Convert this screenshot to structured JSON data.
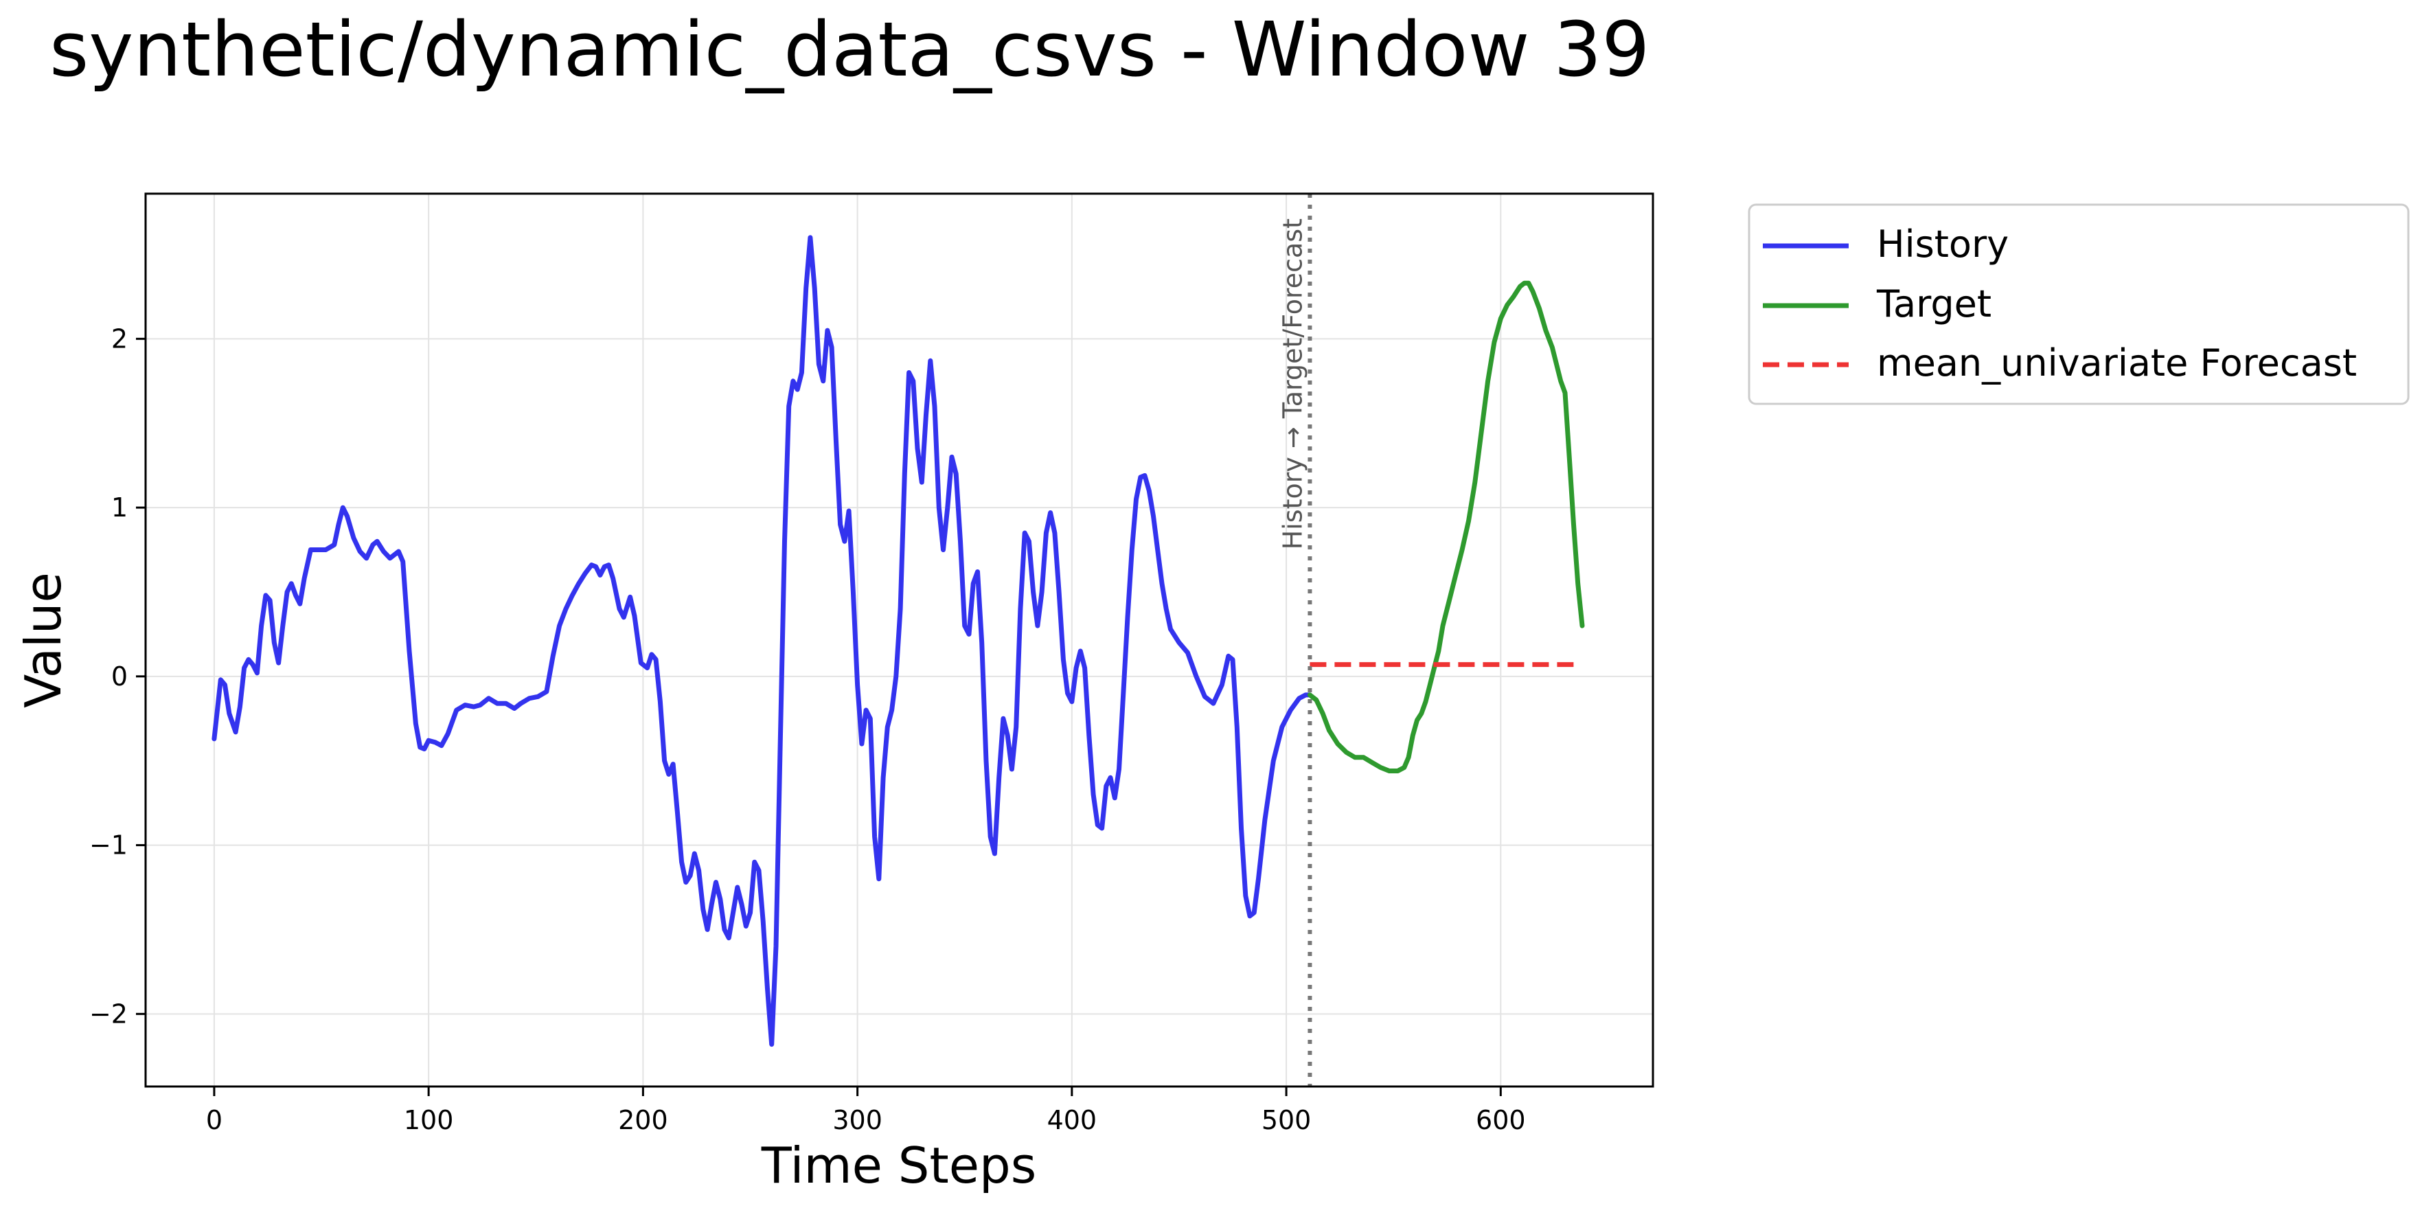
{
  "chart_data": {
    "type": "line",
    "title": "synthetic/dynamic_data_csvs - Window 39",
    "xlabel": "Time Steps",
    "ylabel": "Value",
    "xlim": [
      -32,
      671
    ],
    "ylim": [
      -2.43,
      2.86
    ],
    "xticks": [
      0,
      100,
      200,
      300,
      400,
      500,
      600
    ],
    "xtick_labels": [
      "0",
      "100",
      "200",
      "300",
      "400",
      "500",
      "600"
    ],
    "yticks": [
      -2,
      -1,
      0,
      1,
      2
    ],
    "ytick_labels": [
      "−2",
      "−1",
      "0",
      "1",
      "2"
    ],
    "grid": true,
    "legend_position": "outside-top-right",
    "annotation": {
      "text": "History → Target/Forecast",
      "x": 511
    },
    "series": [
      {
        "name": "History",
        "color": "#3333ee",
        "style": "solid",
        "points": [
          [
            0,
            -0.37
          ],
          [
            3,
            -0.02
          ],
          [
            5,
            -0.05
          ],
          [
            7,
            -0.22
          ],
          [
            10,
            -0.33
          ],
          [
            12,
            -0.18
          ],
          [
            14,
            0.05
          ],
          [
            16,
            0.1
          ],
          [
            18,
            0.07
          ],
          [
            20,
            0.02
          ],
          [
            22,
            0.3
          ],
          [
            24,
            0.48
          ],
          [
            26,
            0.45
          ],
          [
            28,
            0.2
          ],
          [
            30,
            0.08
          ],
          [
            32,
            0.3
          ],
          [
            34,
            0.5
          ],
          [
            36,
            0.55
          ],
          [
            38,
            0.48
          ],
          [
            40,
            0.43
          ],
          [
            42,
            0.58
          ],
          [
            45,
            0.75
          ],
          [
            48,
            0.75
          ],
          [
            52,
            0.75
          ],
          [
            56,
            0.78
          ],
          [
            58,
            0.9
          ],
          [
            60,
            1.0
          ],
          [
            62,
            0.95
          ],
          [
            65,
            0.82
          ],
          [
            68,
            0.74
          ],
          [
            71,
            0.7
          ],
          [
            74,
            0.78
          ],
          [
            76,
            0.8
          ],
          [
            79,
            0.74
          ],
          [
            82,
            0.7
          ],
          [
            86,
            0.74
          ],
          [
            88,
            0.68
          ],
          [
            91,
            0.15
          ],
          [
            94,
            -0.28
          ],
          [
            96,
            -0.42
          ],
          [
            98,
            -0.43
          ],
          [
            100,
            -0.38
          ],
          [
            103,
            -0.39
          ],
          [
            106,
            -0.41
          ],
          [
            109,
            -0.34
          ],
          [
            113,
            -0.2
          ],
          [
            117,
            -0.17
          ],
          [
            121,
            -0.18
          ],
          [
            124,
            -0.17
          ],
          [
            128,
            -0.13
          ],
          [
            132,
            -0.16
          ],
          [
            136,
            -0.16
          ],
          [
            140,
            -0.19
          ],
          [
            143,
            -0.16
          ],
          [
            147,
            -0.13
          ],
          [
            151,
            -0.12
          ],
          [
            155,
            -0.09
          ],
          [
            158,
            0.12
          ],
          [
            161,
            0.3
          ],
          [
            164,
            0.4
          ],
          [
            167,
            0.48
          ],
          [
            170,
            0.55
          ],
          [
            173,
            0.61
          ],
          [
            176,
            0.66
          ],
          [
            178,
            0.65
          ],
          [
            180,
            0.6
          ],
          [
            182,
            0.65
          ],
          [
            184,
            0.66
          ],
          [
            186,
            0.58
          ],
          [
            189,
            0.4
          ],
          [
            191,
            0.35
          ],
          [
            194,
            0.47
          ],
          [
            196,
            0.36
          ],
          [
            199,
            0.08
          ],
          [
            202,
            0.05
          ],
          [
            204,
            0.13
          ],
          [
            206,
            0.1
          ],
          [
            208,
            -0.15
          ],
          [
            210,
            -0.5
          ],
          [
            212,
            -0.58
          ],
          [
            214,
            -0.52
          ],
          [
            216,
            -0.8
          ],
          [
            218,
            -1.1
          ],
          [
            220,
            -1.22
          ],
          [
            222,
            -1.18
          ],
          [
            224,
            -1.05
          ],
          [
            226,
            -1.15
          ],
          [
            228,
            -1.38
          ],
          [
            230,
            -1.5
          ],
          [
            232,
            -1.35
          ],
          [
            234,
            -1.22
          ],
          [
            236,
            -1.32
          ],
          [
            238,
            -1.5
          ],
          [
            240,
            -1.55
          ],
          [
            242,
            -1.4
          ],
          [
            244,
            -1.25
          ],
          [
            246,
            -1.35
          ],
          [
            248,
            -1.48
          ],
          [
            250,
            -1.4
          ],
          [
            252,
            -1.1
          ],
          [
            254,
            -1.15
          ],
          [
            256,
            -1.45
          ],
          [
            258,
            -1.85
          ],
          [
            260,
            -2.18
          ],
          [
            262,
            -1.6
          ],
          [
            264,
            -0.4
          ],
          [
            266,
            0.8
          ],
          [
            268,
            1.6
          ],
          [
            270,
            1.75
          ],
          [
            272,
            1.7
          ],
          [
            274,
            1.8
          ],
          [
            276,
            2.3
          ],
          [
            278,
            2.6
          ],
          [
            280,
            2.3
          ],
          [
            282,
            1.85
          ],
          [
            284,
            1.75
          ],
          [
            286,
            2.05
          ],
          [
            288,
            1.95
          ],
          [
            290,
            1.4
          ],
          [
            292,
            0.9
          ],
          [
            294,
            0.8
          ],
          [
            296,
            0.98
          ],
          [
            298,
            0.5
          ],
          [
            300,
            -0.05
          ],
          [
            302,
            -0.4
          ],
          [
            304,
            -0.2
          ],
          [
            306,
            -0.25
          ],
          [
            308,
            -0.95
          ],
          [
            310,
            -1.2
          ],
          [
            312,
            -0.6
          ],
          [
            314,
            -0.3
          ],
          [
            316,
            -0.2
          ],
          [
            318,
            0.0
          ],
          [
            320,
            0.4
          ],
          [
            322,
            1.2
          ],
          [
            324,
            1.8
          ],
          [
            326,
            1.75
          ],
          [
            328,
            1.35
          ],
          [
            330,
            1.15
          ],
          [
            332,
            1.55
          ],
          [
            334,
            1.87
          ],
          [
            336,
            1.6
          ],
          [
            338,
            1.0
          ],
          [
            340,
            0.75
          ],
          [
            342,
            1.0
          ],
          [
            344,
            1.3
          ],
          [
            346,
            1.2
          ],
          [
            348,
            0.8
          ],
          [
            350,
            0.3
          ],
          [
            352,
            0.25
          ],
          [
            354,
            0.55
          ],
          [
            356,
            0.62
          ],
          [
            358,
            0.2
          ],
          [
            360,
            -0.5
          ],
          [
            362,
            -0.95
          ],
          [
            364,
            -1.05
          ],
          [
            366,
            -0.6
          ],
          [
            368,
            -0.25
          ],
          [
            370,
            -0.35
          ],
          [
            372,
            -0.55
          ],
          [
            374,
            -0.3
          ],
          [
            376,
            0.4
          ],
          [
            378,
            0.85
          ],
          [
            380,
            0.8
          ],
          [
            382,
            0.5
          ],
          [
            384,
            0.3
          ],
          [
            386,
            0.5
          ],
          [
            388,
            0.85
          ],
          [
            390,
            0.97
          ],
          [
            392,
            0.85
          ],
          [
            394,
            0.5
          ],
          [
            396,
            0.1
          ],
          [
            398,
            -0.1
          ],
          [
            400,
            -0.15
          ],
          [
            402,
            0.05
          ],
          [
            404,
            0.15
          ],
          [
            406,
            0.05
          ],
          [
            408,
            -0.35
          ],
          [
            410,
            -0.7
          ],
          [
            412,
            -0.88
          ],
          [
            414,
            -0.9
          ],
          [
            416,
            -0.65
          ],
          [
            418,
            -0.6
          ],
          [
            420,
            -0.72
          ],
          [
            422,
            -0.55
          ],
          [
            424,
            -0.1
          ],
          [
            426,
            0.35
          ],
          [
            428,
            0.75
          ],
          [
            430,
            1.05
          ],
          [
            432,
            1.18
          ],
          [
            434,
            1.19
          ],
          [
            436,
            1.1
          ],
          [
            438,
            0.95
          ],
          [
            440,
            0.75
          ],
          [
            442,
            0.55
          ],
          [
            444,
            0.4
          ],
          [
            446,
            0.28
          ],
          [
            450,
            0.2
          ],
          [
            454,
            0.14
          ],
          [
            458,
            0.0
          ],
          [
            462,
            -0.12
          ],
          [
            466,
            -0.16
          ],
          [
            470,
            -0.05
          ],
          [
            473,
            0.12
          ],
          [
            475,
            0.1
          ],
          [
            477,
            -0.3
          ],
          [
            479,
            -0.9
          ],
          [
            481,
            -1.3
          ],
          [
            483,
            -1.42
          ],
          [
            485,
            -1.4
          ],
          [
            487,
            -1.2
          ],
          [
            490,
            -0.85
          ],
          [
            494,
            -0.5
          ],
          [
            498,
            -0.3
          ],
          [
            502,
            -0.2
          ],
          [
            506,
            -0.13
          ],
          [
            509,
            -0.11
          ],
          [
            511,
            -0.11
          ]
        ]
      },
      {
        "name": "Target",
        "color": "#2e9a2e",
        "style": "solid",
        "points": [
          [
            511,
            -0.11
          ],
          [
            514,
            -0.14
          ],
          [
            517,
            -0.22
          ],
          [
            520,
            -0.32
          ],
          [
            524,
            -0.4
          ],
          [
            528,
            -0.45
          ],
          [
            532,
            -0.48
          ],
          [
            536,
            -0.48
          ],
          [
            540,
            -0.51
          ],
          [
            544,
            -0.54
          ],
          [
            548,
            -0.56
          ],
          [
            552,
            -0.56
          ],
          [
            555,
            -0.54
          ],
          [
            557,
            -0.48
          ],
          [
            559,
            -0.35
          ],
          [
            561,
            -0.26
          ],
          [
            563,
            -0.22
          ],
          [
            565,
            -0.15
          ],
          [
            567,
            -0.05
          ],
          [
            569,
            0.05
          ],
          [
            571,
            0.15
          ],
          [
            573,
            0.3
          ],
          [
            576,
            0.45
          ],
          [
            579,
            0.6
          ],
          [
            582,
            0.75
          ],
          [
            585,
            0.92
          ],
          [
            588,
            1.15
          ],
          [
            591,
            1.45
          ],
          [
            594,
            1.75
          ],
          [
            597,
            1.98
          ],
          [
            600,
            2.12
          ],
          [
            603,
            2.2
          ],
          [
            606,
            2.25
          ],
          [
            609,
            2.31
          ],
          [
            611,
            2.33
          ],
          [
            613,
            2.33
          ],
          [
            615,
            2.28
          ],
          [
            618,
            2.18
          ],
          [
            621,
            2.05
          ],
          [
            624,
            1.95
          ],
          [
            626,
            1.85
          ],
          [
            628,
            1.75
          ],
          [
            630,
            1.68
          ],
          [
            632,
            1.3
          ],
          [
            634,
            0.9
          ],
          [
            636,
            0.55
          ],
          [
            638,
            0.3
          ]
        ]
      },
      {
        "name": "mean_univariate Forecast",
        "color": "#ee3333",
        "style": "dashed",
        "points": [
          [
            511,
            0.07
          ],
          [
            634,
            0.07
          ]
        ]
      }
    ]
  }
}
